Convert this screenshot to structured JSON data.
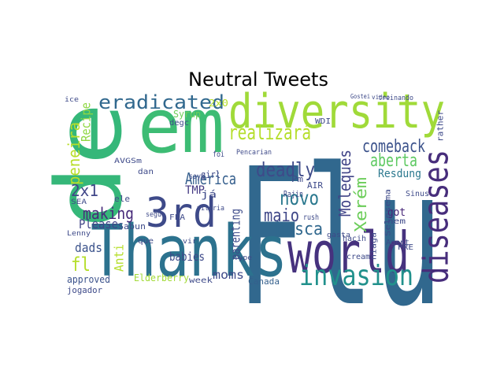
{
  "chart_data": {
    "type": "wordcloud",
    "title": "Neutral Tweets",
    "words": [
      "Flu",
      "de",
      "em",
      "Thanks",
      "world",
      "diversity",
      "3rd",
      "diseases",
      "invasion",
      "eradicated",
      "America",
      "realizará",
      "comeback",
      "deadly",
      "novo",
      "aberta",
      "maio",
      "busca",
      "Moleques",
      "Xerém",
      "2x1",
      "making",
      "Please",
      "peneira",
      "Recipe",
      "fl",
      "dads",
      "Anti",
      "babies",
      "parenting",
      "moms",
      "TMP",
      "Resdung",
      "got",
      "approved",
      "Elderberry",
      "Canada",
      "Sabun",
      "ele",
      "jogador",
      "2x0",
      "Syrup",
      "girl",
      "já",
      "Pencarian",
      "Pm",
      "AIR",
      "Rajin",
      "week",
      "WDI",
      "rather",
      "Sinus",
      "Agent",
      "Selesema",
      "niaga",
      "hacih",
      "cream",
      "rush",
      "gasta",
      "PRE",
      "Type",
      "FFA",
      "que",
      "dan",
      "segue",
      "foi",
      "saya",
      "degc",
      "Lenny",
      "vitoria",
      "vir",
      "nem",
      "treinando",
      "Gostei",
      "video",
      "SEA",
      "ice",
      "AVGSm"
    ],
    "colors": [
      "#31688e",
      "#35b779",
      "#3dbc74",
      "#2c728e",
      "#46327e",
      "#a0da39",
      "#3e4a89",
      "#472d7b",
      "#21918c",
      "#31688e",
      "#355f8d",
      "#b5de2b",
      "#3b528b",
      "#3e4a89",
      "#2a788e",
      "#5ec962",
      "#3f4788",
      "#31688e",
      "#404387",
      "#6ccd5a",
      "#404688",
      "#472a7a",
      "#414487",
      "#b8de29",
      "#90d743",
      "#b5de2b",
      "#3b528b",
      "#b5de2b",
      "#3e4a89",
      "#3e4c8a",
      "#3e4a89",
      "#443983",
      "#2a788e",
      "#482878",
      "#3b528b",
      "#a2da37",
      "#35608d",
      "#3e4a89",
      "#3e4a89",
      "#3e4a89",
      "#b5de2b",
      "#6ece58",
      "#3e4a89",
      "#3e4a89",
      "#3e4a89",
      "#3e4a89",
      "#3e4a89",
      "#3e4a89",
      "#3e4a89",
      "#3e4a89",
      "#3e4a89",
      "#3e4a89",
      "#3e4a89",
      "#3e4a89",
      "#3e4a89",
      "#3e4a89",
      "#3e4a89",
      "#3e4a89",
      "#3e4a89",
      "#3e4a89",
      "#3e4a89",
      "#3e4a89",
      "#3e4a89",
      "#3e4a89",
      "#3e4a89",
      "#3e4a89",
      "#3e4a89",
      "#3e4a89",
      "#3e4a89",
      "#3e4a89",
      "#3e4a89",
      "#3e4a89",
      "#3e4a89",
      "#3e4a89",
      "#3e4a89",
      "#3e4a89",
      "#3e4a89",
      "#3e4a89"
    ]
  }
}
